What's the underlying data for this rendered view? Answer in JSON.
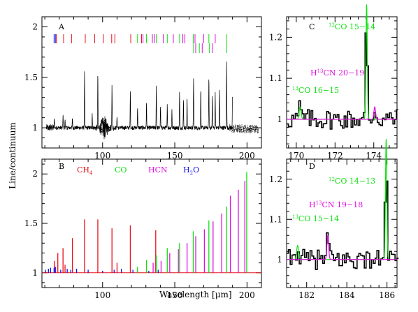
{
  "colors": {
    "frame": "#000000",
    "ch4": "#e8101a",
    "co": "#10e010",
    "hcn": "#e010e0",
    "h2o": "#1010e8",
    "observed": "#000000"
  },
  "ylabel": "Line/continuum",
  "xlabel_main": "Wavelength [",
  "xlabel_mu": "μ",
  "xlabel_unit": "m]",
  "chart_data": [
    {
      "type": "line",
      "panel": "A",
      "xlim": [
        58,
        210
      ],
      "ylim": [
        0.8,
        2.1
      ],
      "x_ticks": [
        100,
        150,
        200
      ],
      "x_tick_labels": [
        "100",
        "150",
        "200"
      ],
      "y_ticks": [
        1,
        1.5,
        2
      ],
      "y_tick_labels": [
        "1",
        "1.5",
        "2"
      ],
      "series": [
        {
          "lines": [
            {
              "x": 66.6,
              "y": 1.1
            },
            {
              "x": 72.6,
              "y": 1.13
            },
            {
              "x": 74.0,
              "y": 1.08
            },
            {
              "x": 79.1,
              "y": 1.1
            },
            {
              "x": 87.5,
              "y": 1.55
            },
            {
              "x": 92.8,
              "y": 1.15
            },
            {
              "x": 96.7,
              "y": 1.54
            },
            {
              "x": 106.5,
              "y": 1.45
            },
            {
              "x": 110.0,
              "y": 1.12
            },
            {
              "x": 119.2,
              "y": 1.38
            },
            {
              "x": 124.2,
              "y": 1.21
            },
            {
              "x": 130.4,
              "y": 1.25
            },
            {
              "x": 137.2,
              "y": 1.42
            },
            {
              "x": 140.1,
              "y": 1.22
            },
            {
              "x": 144.8,
              "y": 1.23
            },
            {
              "x": 148.0,
              "y": 1.18
            },
            {
              "x": 153.3,
              "y": 1.35
            },
            {
              "x": 156.0,
              "y": 1.28
            },
            {
              "x": 158.5,
              "y": 1.3
            },
            {
              "x": 163.0,
              "y": 1.5
            },
            {
              "x": 168.0,
              "y": 1.4
            },
            {
              "x": 173.6,
              "y": 1.52
            },
            {
              "x": 176.0,
              "y": 1.32
            },
            {
              "x": 178.0,
              "y": 1.35
            },
            {
              "x": 181.0,
              "y": 1.38
            },
            {
              "x": 185.9,
              "y": 1.68
            },
            {
              "x": 190.0,
              "y": 1.45
            }
          ]
        }
      ],
      "marker_rows": [
        {
          "row": 1,
          "color_key": "h2o",
          "x": [
            66.4,
            67.3
          ]
        },
        {
          "row": 1,
          "color_key": "ch4",
          "x": [
            67.9,
            73.0,
            78.5,
            88.0,
            94.5,
            100.5,
            106.3,
            108.5,
            119.5,
            127.0
          ]
        },
        {
          "row": 1,
          "color_key": "co",
          "x": [
            124.2,
            130.4,
            137.2,
            144.8,
            153.3,
            162.8,
            173.6,
            185.9
          ]
        },
        {
          "row": 1,
          "color_key": "hcn",
          "x": [
            128.0,
            134.5,
            136.0,
            142.0,
            149.0,
            155.5,
            157.0,
            164.0,
            170.0,
            178.0
          ]
        },
        {
          "row": 2,
          "color_key": "co",
          "x": [
            163.0,
            167.0,
            174.0,
            186.0
          ]
        },
        {
          "row": 2,
          "color_key": "hcn",
          "x": [
            164.5,
            169.0,
            176.0
          ]
        }
      ]
    },
    {
      "type": "line",
      "panel": "B",
      "xlim": [
        58,
        210
      ],
      "ylim": [
        0.85,
        2.15
      ],
      "x_ticks": [
        100,
        150,
        200
      ],
      "x_tick_labels": [
        "100",
        "150",
        "200"
      ],
      "y_ticks": [
        1,
        1.5,
        2
      ],
      "y_tick_labels": [
        "1",
        "1.5",
        "2"
      ],
      "legend": [
        {
          "label": "CH",
          "sub": "4",
          "color_key": "ch4"
        },
        {
          "label": "CO",
          "sub": "",
          "color_key": "co"
        },
        {
          "label": "HCN",
          "sub": "",
          "color_key": "hcn"
        },
        {
          "label": "H",
          "sub": "2",
          "label_after": "O",
          "color_key": "h2o"
        }
      ],
      "series": [
        {
          "name": "CH4",
          "color_key": "ch4",
          "x": [
            66.6,
            69.0,
            72.6,
            74.0,
            79.1,
            87.5,
            96.7,
            106.5,
            110.0,
            119.2,
            136.8
          ],
          "y": [
            1.12,
            1.2,
            1.25,
            1.08,
            1.35,
            1.54,
            1.54,
            1.45,
            1.1,
            1.48,
            1.43
          ]
        },
        {
          "name": "CO",
          "color_key": "co",
          "x": [
            124.2,
            130.4,
            137.2,
            144.8,
            153.3,
            162.8,
            173.6,
            185.9,
            199.8
          ],
          "y": [
            1.06,
            1.13,
            1.18,
            1.25,
            1.3,
            1.42,
            1.53,
            1.67,
            2.02
          ]
        },
        {
          "name": "HCN",
          "color_key": "hcn",
          "x": [
            135.0,
            140.5,
            146.5,
            152.5,
            158.5,
            164.5,
            170.5,
            176.5,
            182.5,
            188.5,
            194.0,
            198.5
          ],
          "y": [
            1.1,
            1.12,
            1.2,
            1.24,
            1.3,
            1.37,
            1.44,
            1.52,
            1.6,
            1.78,
            1.84,
            1.93
          ]
        },
        {
          "name": "H2O",
          "color_key": "h2o",
          "x": [
            60.5,
            62.5,
            64.0,
            66.4,
            67.3,
            71.0,
            75.5,
            78.0,
            82.0,
            90.0,
            100.0,
            108.0,
            113.0,
            121.0,
            132.0,
            138.5
          ],
          "y": [
            1.03,
            1.04,
            1.05,
            1.05,
            1.06,
            1.03,
            1.04,
            1.03,
            1.04,
            1.03,
            1.02,
            1.03,
            1.04,
            1.03,
            1.02,
            1.03
          ]
        }
      ]
    },
    {
      "type": "line",
      "panel": "C",
      "xlim": [
        169.5,
        175.2
      ],
      "ylim": [
        0.93,
        1.25
      ],
      "x_ticks": [
        170,
        172,
        174
      ],
      "x_tick_labels": [
        "170",
        "172",
        "174"
      ],
      "y_ticks": [
        1,
        1.1,
        1.2
      ],
      "y_tick_labels": [
        "1",
        "1.1",
        "1.2"
      ],
      "annotations": [
        {
          "sup": "12",
          "text": "CO 15−14",
          "color_key": "co"
        },
        {
          "prefix": "H",
          "sup": "13",
          "text": "CN 20−19",
          "color_key": "hcn"
        },
        {
          "sup": "13",
          "text": "CO 16−15",
          "color_key": "co"
        }
      ],
      "series": [
        {
          "name": "CO",
          "color_key": "co",
          "features": [
            {
              "x": 170.2,
              "y": 1.03,
              "w": 0.07
            },
            {
              "x": 173.63,
              "y": 1.28,
              "w": 0.05
            }
          ]
        },
        {
          "name": "HCN",
          "color_key": "hcn",
          "features": [
            {
              "x": 174.05,
              "y": 1.03,
              "w": 0.06
            }
          ]
        }
      ]
    },
    {
      "type": "line",
      "panel": "D",
      "xlim": [
        181.0,
        186.5
      ],
      "ylim": [
        0.93,
        1.25
      ],
      "x_ticks": [
        182,
        184,
        186
      ],
      "x_tick_labels": [
        "182",
        "184",
        "186"
      ],
      "y_ticks": [
        1,
        1.1,
        1.2
      ],
      "y_tick_labels": [
        "1",
        "1.1",
        "1.2"
      ],
      "annotations": [
        {
          "sup": "12",
          "text": "CO 14−13",
          "color_key": "co"
        },
        {
          "prefix": "H",
          "sup": "13",
          "text": "CN 19−18",
          "color_key": "hcn"
        },
        {
          "sup": "13",
          "text": "CO 15−14",
          "color_key": "co"
        }
      ],
      "series": [
        {
          "name": "CO",
          "color_key": "co",
          "features": [
            {
              "x": 181.55,
              "y": 1.035,
              "w": 0.07
            },
            {
              "x": 185.96,
              "y": 1.3,
              "w": 0.05
            }
          ]
        },
        {
          "name": "HCN",
          "color_key": "hcn",
          "features": [
            {
              "x": 183.05,
              "y": 1.06,
              "w": 0.06
            }
          ]
        }
      ]
    }
  ]
}
